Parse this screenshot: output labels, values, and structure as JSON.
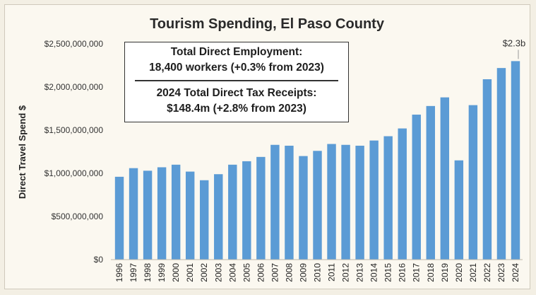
{
  "chart_data": {
    "type": "bar",
    "title": "Tourism Spending, El Paso County",
    "ylabel": "Direct Travel Spend $",
    "xlabel": "",
    "ylim": [
      0,
      2500000000
    ],
    "yticks": [
      0,
      500000000,
      1000000000,
      1500000000,
      2000000000,
      2500000000
    ],
    "ytick_labels": [
      "$0",
      "$500,000,000",
      "$1,000,000,000",
      "$1,500,000,000",
      "$2,000,000,000",
      "$2,500,000,000"
    ],
    "categories": [
      "1996",
      "1997",
      "1998",
      "1999",
      "2000",
      "2001",
      "2002",
      "2003",
      "2004",
      "2005",
      "2006",
      "2007",
      "2008",
      "2009",
      "2010",
      "2011",
      "2012",
      "2013",
      "2014",
      "2015",
      "2016",
      "2017",
      "2018",
      "2019",
      "2020",
      "2021",
      "2022",
      "2023",
      "2024"
    ],
    "values": [
      960000000,
      1060000000,
      1030000000,
      1070000000,
      1100000000,
      1020000000,
      920000000,
      990000000,
      1100000000,
      1140000000,
      1190000000,
      1330000000,
      1320000000,
      1200000000,
      1260000000,
      1340000000,
      1330000000,
      1320000000,
      1380000000,
      1430000000,
      1520000000,
      1680000000,
      1780000000,
      1880000000,
      1150000000,
      1790000000,
      2090000000,
      2220000000,
      2300000000
    ],
    "bar_color": "#5b9bd5",
    "grid": false,
    "annotation": {
      "category": "2024",
      "text": "$2.3b"
    }
  },
  "info_box": {
    "employment_title": "Total Direct Employment:",
    "employment_value": "18,400 workers (+0.3% from 2023)",
    "tax_title": "2024 Total Direct Tax Receipts:",
    "tax_value": "$148.4m (+2.8% from 2023)"
  }
}
